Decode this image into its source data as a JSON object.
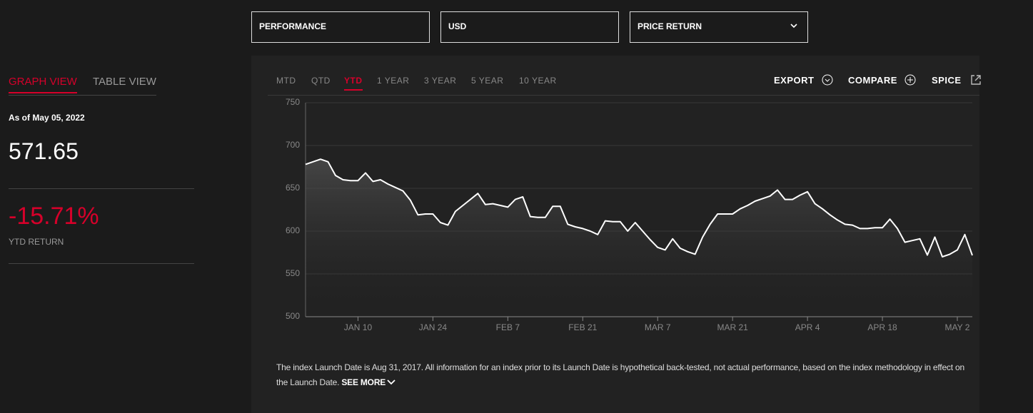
{
  "controls": {
    "view_type": "PERFORMANCE",
    "currency": "USD",
    "return_type": "PRICE RETURN"
  },
  "tabs": [
    "GRAPH VIEW",
    "TABLE VIEW"
  ],
  "as_of": "As of May 05, 2022",
  "level": "571.65",
  "ytd_return": "-15.71%",
  "ytd_label": "YTD RETURN",
  "periods": [
    "MTD",
    "QTD",
    "YTD",
    "1 YEAR",
    "3 YEAR",
    "5 YEAR",
    "10 YEAR"
  ],
  "actions": [
    "EXPORT",
    "COMPARE",
    "SPICE"
  ],
  "disclaimer": "The index Launch Date is Aug 31, 2017. All information for an index prior to its Launch Date is hypothetical back-tested, not actual performance, based on the index methodology in effect on the Launch Date.",
  "see_more": "SEE MORE",
  "chart_data": {
    "type": "line",
    "categories": [
      null,
      null,
      null,
      null,
      null,
      null,
      null,
      "JAN 10",
      null,
      null,
      null,
      null,
      null,
      null,
      null,
      null,
      null,
      "JAN 24",
      null,
      null,
      null,
      null,
      null,
      null,
      null,
      null,
      null,
      "FEB 7",
      null,
      null,
      null,
      null,
      null,
      null,
      null,
      null,
      null,
      "FEB 21",
      null,
      null,
      null,
      null,
      null,
      null,
      null,
      null,
      null,
      "MAR 7",
      null,
      null,
      null,
      null,
      null,
      null,
      null,
      null,
      null,
      "MAR 21",
      null,
      null,
      null,
      null,
      null,
      null,
      null,
      null,
      null,
      "APR 4",
      null,
      null,
      null,
      null,
      null,
      null,
      null,
      null,
      null,
      "APR 18",
      null,
      null,
      null,
      null,
      null,
      null,
      null,
      null,
      null,
      "MAY 2",
      null,
      null
    ],
    "values": [
      678,
      681,
      684,
      681,
      665,
      660,
      659,
      659,
      668,
      658,
      660,
      655,
      651,
      647,
      636,
      619,
      620,
      620,
      610,
      607,
      623,
      630,
      637,
      644,
      631,
      632,
      630,
      628,
      637,
      640,
      617,
      616,
      616,
      629,
      629,
      608,
      605,
      603,
      600,
      596,
      612,
      611,
      611,
      600,
      610,
      600,
      590,
      581,
      578,
      591,
      580,
      576,
      573,
      593,
      608,
      620,
      620,
      620,
      626,
      630,
      635,
      638,
      641,
      648,
      637,
      637,
      642,
      646,
      632,
      626,
      619,
      613,
      608,
      607,
      603,
      603,
      604,
      604,
      614,
      603,
      587,
      589,
      591,
      572,
      593,
      570,
      573,
      578,
      596,
      571.65
    ],
    "color": "#ffffff",
    "ylim": [
      500,
      750
    ],
    "yticks": [
      500,
      550,
      600,
      650,
      700,
      750
    ],
    "grid": true
  }
}
